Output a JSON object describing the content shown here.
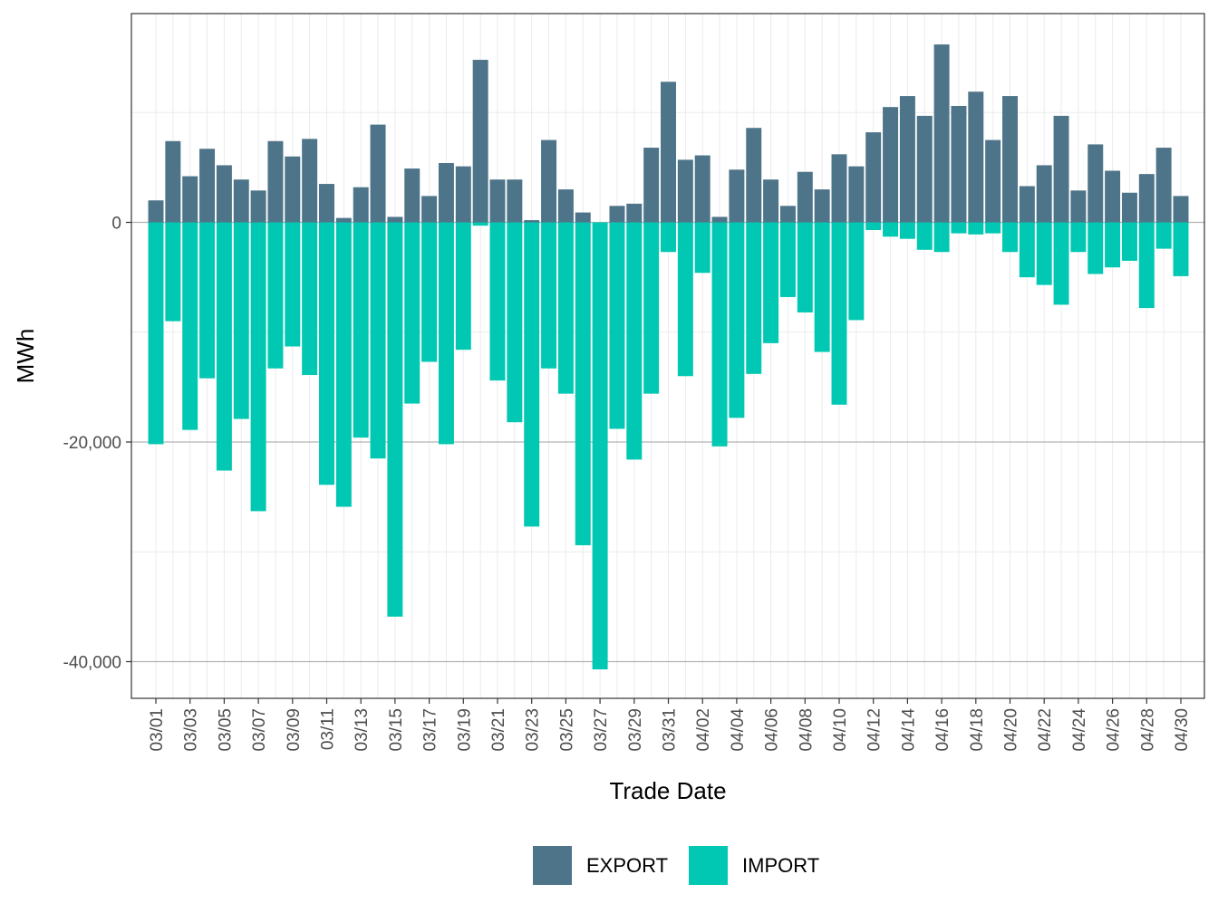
{
  "chart_data": {
    "type": "bar",
    "xlabel": "Trade Date",
    "ylabel": "MWh",
    "ylim": [
      -42000,
      19000
    ],
    "yticks": [
      0,
      -20000,
      -40000
    ],
    "ytick_labels": [
      "0",
      "-20,000",
      "-40,000"
    ],
    "categories": [
      "03/01",
      "03/02",
      "03/03",
      "03/04",
      "03/05",
      "03/06",
      "03/07",
      "03/08",
      "03/09",
      "03/10",
      "03/11",
      "03/12",
      "03/13",
      "03/14",
      "03/15",
      "03/16",
      "03/17",
      "03/18",
      "03/19",
      "03/20",
      "03/21",
      "03/22",
      "03/23",
      "03/24",
      "03/25",
      "03/26",
      "03/27",
      "03/28",
      "03/29",
      "03/30",
      "03/31",
      "04/01",
      "04/02",
      "04/03",
      "04/04",
      "04/05",
      "04/06",
      "04/07",
      "04/08",
      "04/09",
      "04/10",
      "04/11",
      "04/12",
      "04/13",
      "04/14",
      "04/15",
      "04/16",
      "04/17",
      "04/18",
      "04/19",
      "04/20",
      "04/21",
      "04/22",
      "04/23",
      "04/24",
      "04/25",
      "04/26",
      "04/27",
      "04/28",
      "04/29",
      "04/30"
    ],
    "xtick_labels": [
      "03/01",
      "03/03",
      "03/05",
      "03/07",
      "03/09",
      "03/11",
      "03/13",
      "03/15",
      "03/17",
      "03/19",
      "03/21",
      "03/23",
      "03/25",
      "03/27",
      "03/29",
      "03/31",
      "04/02",
      "04/04",
      "04/06",
      "04/08",
      "04/10",
      "04/12",
      "04/14",
      "04/16",
      "04/18",
      "04/20",
      "04/22",
      "04/24",
      "04/26",
      "04/28",
      "04/30"
    ],
    "series": [
      {
        "name": "EXPORT",
        "color": "#4e7489",
        "values": [
          2000,
          7400,
          4200,
          6700,
          5200,
          3900,
          2900,
          7400,
          6000,
          7600,
          3500,
          400,
          3200,
          8900,
          500,
          4900,
          2400,
          5400,
          5100,
          14800,
          3900,
          3900,
          200,
          7500,
          3000,
          900,
          0,
          1500,
          1700,
          6800,
          12800,
          5700,
          6100,
          500,
          4800,
          8600,
          3900,
          1500,
          4600,
          3000,
          6200,
          5100,
          8200,
          10500,
          11500,
          9700,
          16200,
          10600,
          11900,
          7500,
          11500,
          3300,
          5200,
          9700,
          2900,
          7100,
          4700,
          2700,
          4400,
          6800,
          2400
        ]
      },
      {
        "name": "IMPORT",
        "color": "#00c8b2",
        "values": [
          -20200,
          -9000,
          -18900,
          -14200,
          -22600,
          -17900,
          -26300,
          -13300,
          -11300,
          -13900,
          -23900,
          -25900,
          -19600,
          -21500,
          -35900,
          -16500,
          -12700,
          -20200,
          -11600,
          -300,
          -14400,
          -18200,
          -27700,
          -13300,
          -15600,
          -29400,
          -40700,
          -18800,
          -21600,
          -15600,
          -2700,
          -14000,
          -4600,
          -20400,
          -17800,
          -13800,
          -11000,
          -6800,
          -8200,
          -11800,
          -16600,
          -8900,
          -700,
          -1300,
          -1500,
          -2500,
          -2700,
          -1000,
          -1100,
          -1000,
          -2700,
          -5000,
          -5700,
          -7500,
          -2700,
          -4700,
          -4100,
          -3500,
          -7800,
          -2400,
          -4900
        ]
      }
    ]
  }
}
